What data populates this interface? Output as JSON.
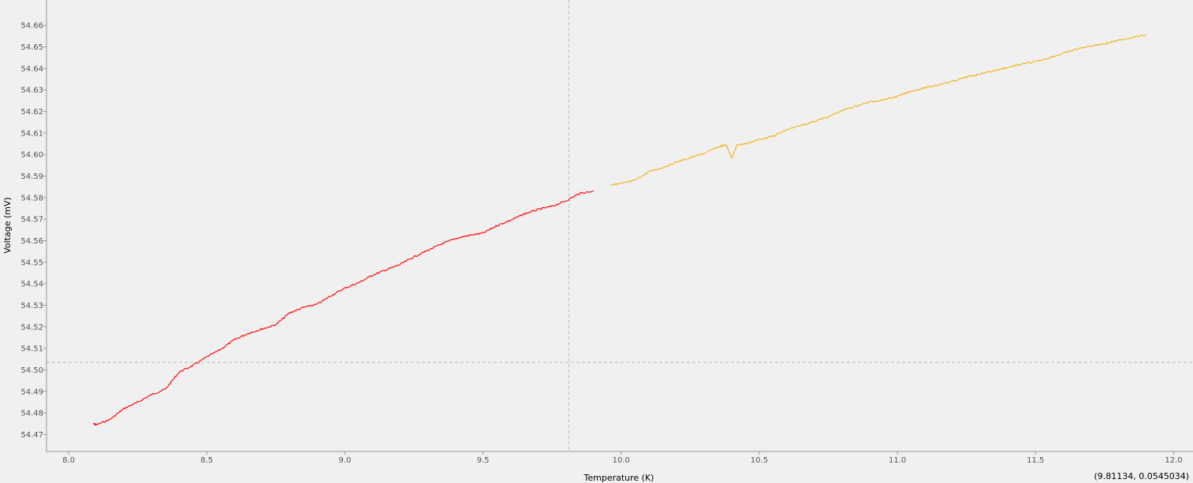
{
  "chart_data": {
    "type": "line",
    "title": "",
    "xlabel": "Temperature (K)",
    "ylabel": "Voltage (mV)",
    "xlim": [
      7.92,
      12.07
    ],
    "ylim": [
      54.4621,
      54.6718
    ],
    "x_ticks": [
      "8.0",
      "8.5",
      "9.0",
      "9.5",
      "10.0",
      "10.5",
      "11.0",
      "11.5",
      "12.0"
    ],
    "y_ticks": [
      "54.47",
      "54.48",
      "54.49",
      "54.50",
      "54.51",
      "54.52",
      "54.53",
      "54.54",
      "54.55",
      "54.56",
      "54.57",
      "54.58",
      "54.59",
      "54.60",
      "54.61",
      "54.62",
      "54.63",
      "54.64",
      "54.65",
      "54.66"
    ],
    "grid": false,
    "legend": "none",
    "crosshair": {
      "x": 9.81134,
      "y": 54.5035
    },
    "cursor_readout": "(9.81134, 0.0545034)",
    "series": [
      {
        "color": "#ff0000",
        "points": [
          [
            8.09,
            54.475
          ],
          [
            8.1,
            54.4745
          ],
          [
            8.15,
            54.477
          ],
          [
            8.2,
            54.482
          ],
          [
            8.25,
            54.485
          ],
          [
            8.3,
            54.4885
          ],
          [
            8.35,
            54.491
          ],
          [
            8.4,
            54.499
          ],
          [
            8.45,
            54.502
          ],
          [
            8.5,
            54.506
          ],
          [
            8.55,
            54.5095
          ],
          [
            8.6,
            54.514
          ],
          [
            8.65,
            54.517
          ],
          [
            8.7,
            54.519
          ],
          [
            8.75,
            54.521
          ],
          [
            8.8,
            54.5265
          ],
          [
            8.85,
            54.529
          ],
          [
            8.9,
            54.5305
          ],
          [
            8.95,
            54.5345
          ],
          [
            9.0,
            54.538
          ],
          [
            9.05,
            54.5405
          ],
          [
            9.1,
            54.544
          ],
          [
            9.15,
            54.5465
          ],
          [
            9.2,
            54.549
          ],
          [
            9.25,
            54.5525
          ],
          [
            9.3,
            54.5555
          ],
          [
            9.35,
            54.5585
          ],
          [
            9.4,
            54.561
          ],
          [
            9.45,
            54.5625
          ],
          [
            9.5,
            54.5635
          ],
          [
            9.55,
            54.567
          ],
          [
            9.6,
            54.5695
          ],
          [
            9.65,
            54.5725
          ],
          [
            9.7,
            54.5745
          ],
          [
            9.75,
            54.576
          ],
          [
            9.8,
            54.5785
          ],
          [
            9.85,
            54.582
          ],
          [
            9.9,
            54.583
          ]
        ]
      },
      {
        "color": "#f2b31d",
        "points": [
          [
            9.96,
            54.586
          ],
          [
            10.0,
            54.5865
          ],
          [
            10.05,
            54.588
          ],
          [
            10.1,
            54.592
          ],
          [
            10.15,
            54.594
          ],
          [
            10.2,
            54.5965
          ],
          [
            10.25,
            54.5985
          ],
          [
            10.3,
            54.6005
          ],
          [
            10.35,
            54.6035
          ],
          [
            10.38,
            54.6045
          ],
          [
            10.4,
            54.5985
          ],
          [
            10.42,
            54.6045
          ],
          [
            10.45,
            54.605
          ],
          [
            10.5,
            54.607
          ],
          [
            10.55,
            54.6085
          ],
          [
            10.6,
            54.6115
          ],
          [
            10.65,
            54.6135
          ],
          [
            10.7,
            54.6155
          ],
          [
            10.75,
            54.6175
          ],
          [
            10.8,
            54.6205
          ],
          [
            10.85,
            54.6225
          ],
          [
            10.9,
            54.6245
          ],
          [
            10.95,
            54.6255
          ],
          [
            11.0,
            54.627
          ],
          [
            11.05,
            54.6295
          ],
          [
            11.1,
            54.631
          ],
          [
            11.15,
            54.6325
          ],
          [
            11.2,
            54.634
          ],
          [
            11.25,
            54.636
          ],
          [
            11.3,
            54.6375
          ],
          [
            11.35,
            54.639
          ],
          [
            11.4,
            54.6405
          ],
          [
            11.45,
            54.642
          ],
          [
            11.5,
            54.643
          ],
          [
            11.55,
            54.645
          ],
          [
            11.6,
            54.647
          ],
          [
            11.65,
            54.649
          ],
          [
            11.7,
            54.6505
          ],
          [
            11.75,
            54.6515
          ],
          [
            11.8,
            54.653
          ],
          [
            11.85,
            54.6545
          ],
          [
            11.9,
            54.6555
          ]
        ]
      }
    ]
  },
  "colors": {
    "background": "#f0f0f0",
    "axis": "#999999",
    "crosshair": "#bbbbbb"
  }
}
